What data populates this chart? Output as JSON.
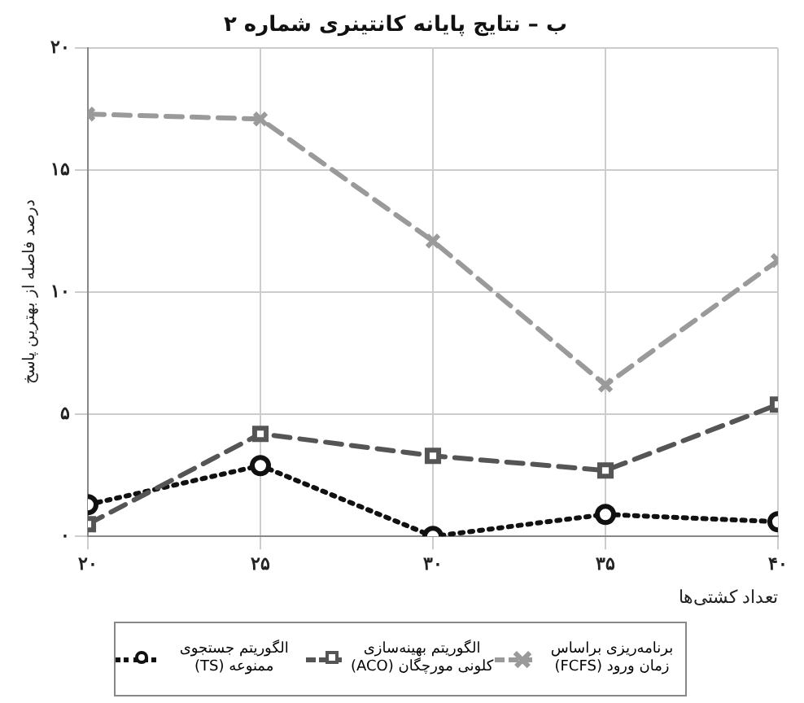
{
  "chart_data": {
    "type": "line",
    "title": "ب – نتایج پایانه کانتینری شماره ۲",
    "xlabel": "تعداد کشتی‌ها",
    "ylabel": "درصد فاصله از بهترین پاسخ",
    "x": [
      20,
      25,
      30,
      35,
      40
    ],
    "xlim": [
      20,
      40
    ],
    "xticks": [
      {
        "value": 20,
        "label": "۲۰"
      },
      {
        "value": 25,
        "label": "۲۵"
      },
      {
        "value": 30,
        "label": "۳۰"
      },
      {
        "value": 35,
        "label": "۳۵"
      },
      {
        "value": 40,
        "label": "۴۰"
      }
    ],
    "ylim": [
      0,
      20
    ],
    "yticks": [
      {
        "value": 0,
        "label": "۰"
      },
      {
        "value": 5,
        "label": "۵"
      },
      {
        "value": 10,
        "label": "۱۰"
      },
      {
        "value": 15,
        "label": "۱۵"
      },
      {
        "value": 20,
        "label": "۲۰"
      }
    ],
    "grid": true,
    "legend": "bottom",
    "series": [
      {
        "name": "برنامه‌ریزی براساس زمان ورود (FCFS)",
        "color": "#9a9a9a",
        "marker": "cross",
        "line_style": "dashed",
        "values": [
          17.3,
          17.1,
          12.1,
          6.2,
          11.3
        ]
      },
      {
        "name": "الگوریتم بهینه‌سازی کلونی مورچگان (ACO)",
        "color": "#555555",
        "marker": "square",
        "line_style": "dashed",
        "values": [
          0.5,
          4.2,
          3.3,
          2.7,
          5.4
        ]
      },
      {
        "name": "الگوریتم جستجوی ممنوعه (TS)",
        "color": "#111111",
        "marker": "circle",
        "line_style": "dotted",
        "values": [
          1.3,
          2.9,
          0,
          0.9,
          0.6
        ]
      }
    ]
  }
}
